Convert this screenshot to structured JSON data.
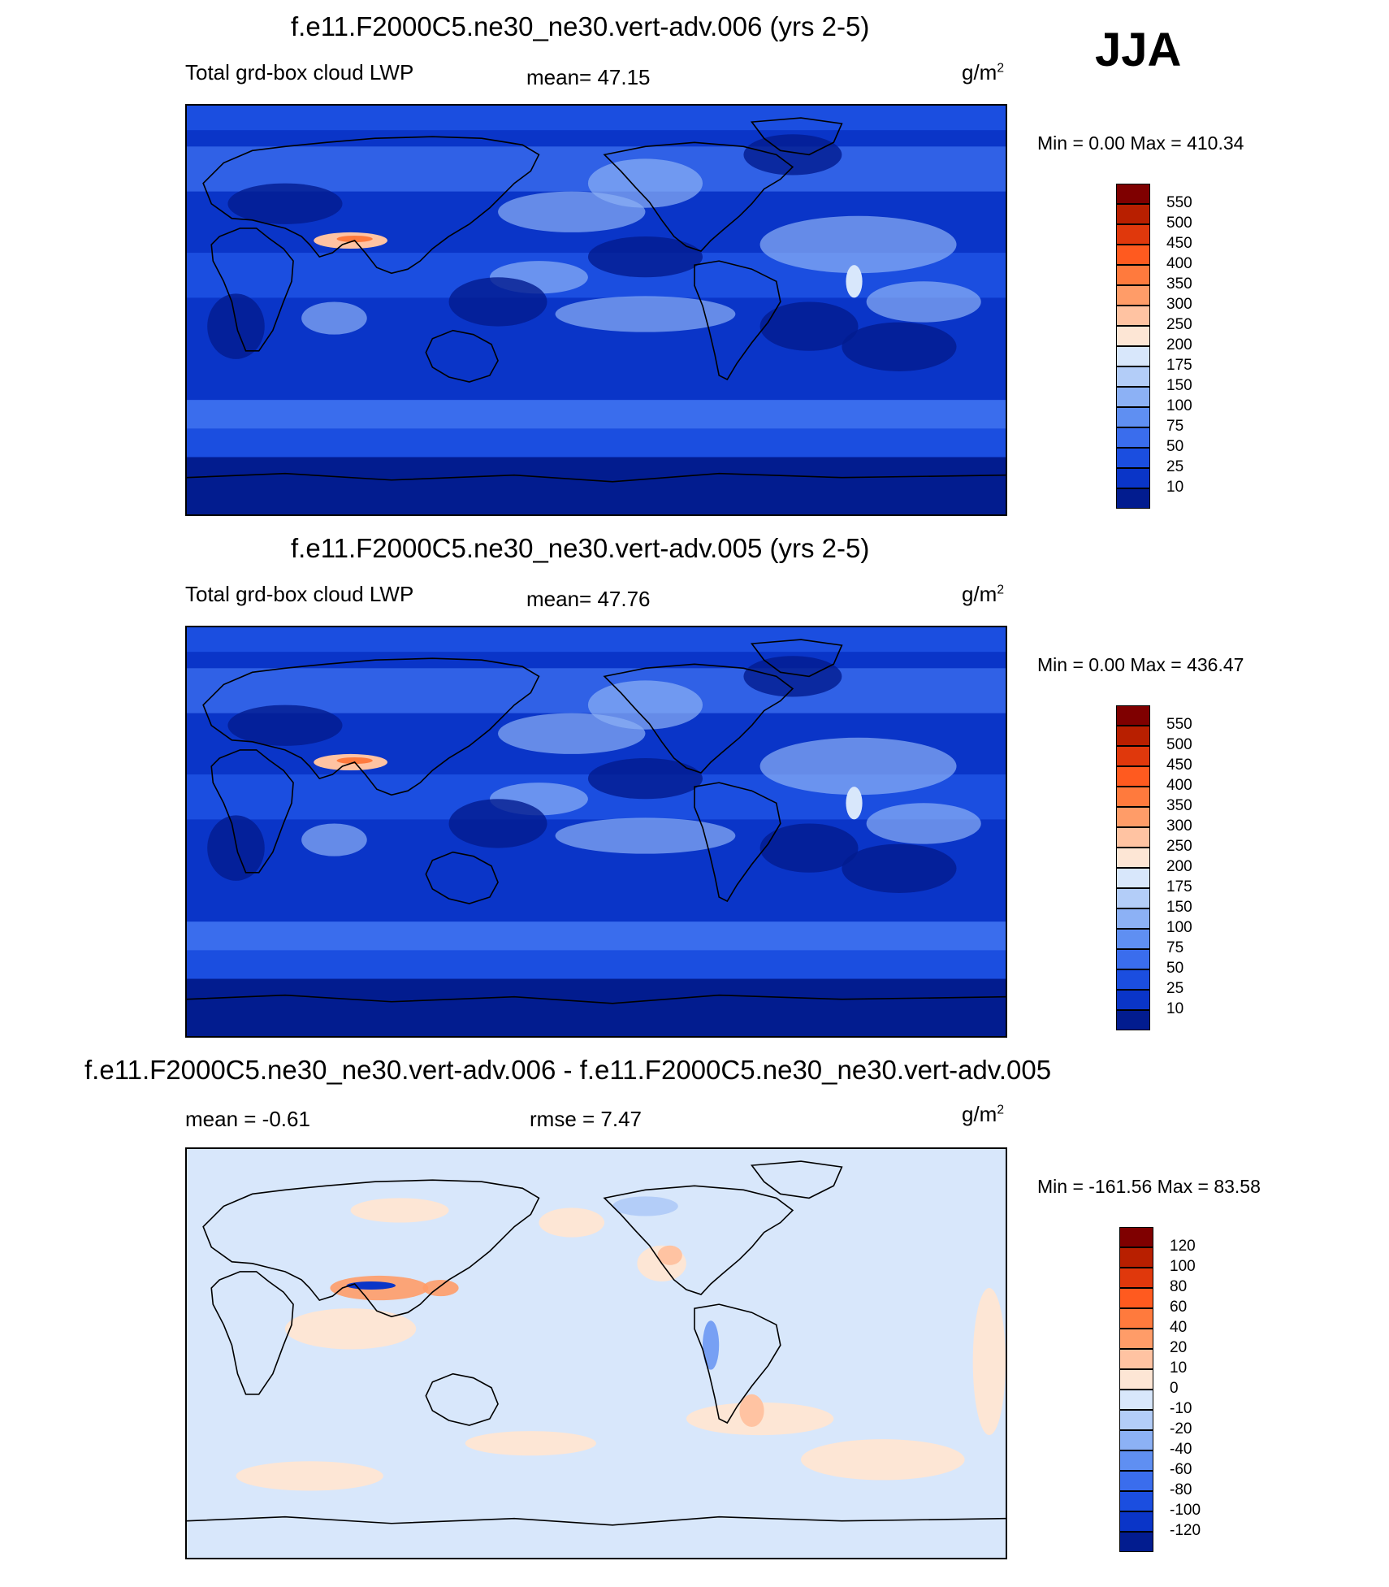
{
  "season": "JJA",
  "panels": [
    {
      "title": "f.e11.F2000C5.ne30_ne30.vert-adv.006 (yrs 2-5)",
      "left_label": "Total grd-box cloud LWP",
      "mid_label": "mean=  47.15",
      "units_base": "g/m",
      "units_exp": "2",
      "minmax": "Min =   0.00 Max = 410.34",
      "colorbar": {
        "levels": [
          "550",
          "500",
          "450",
          "400",
          "350",
          "300",
          "250",
          "200",
          "175",
          "150",
          "100",
          "75",
          "50",
          "25",
          "10"
        ],
        "colors": [
          "#7f0000",
          "#b81f00",
          "#e0380c",
          "#ff5a1f",
          "#ff7a3d",
          "#ff9c68",
          "#ffc3a2",
          "#fde6d5",
          "#d8e7fb",
          "#b3cdf8",
          "#8cb1f5",
          "#5f8ff2",
          "#3a6ded",
          "#1b4ee0",
          "#0a35c8",
          "#021c8f"
        ]
      }
    },
    {
      "title": "f.e11.F2000C5.ne30_ne30.vert-adv.005 (yrs 2-5)",
      "left_label": "Total grd-box cloud LWP",
      "mid_label": "mean=  47.76",
      "units_base": "g/m",
      "units_exp": "2",
      "minmax": "Min =   0.00 Max = 436.47",
      "colorbar": {
        "levels": [
          "550",
          "500",
          "450",
          "400",
          "350",
          "300",
          "250",
          "200",
          "175",
          "150",
          "100",
          "75",
          "50",
          "25",
          "10"
        ],
        "colors": [
          "#7f0000",
          "#b81f00",
          "#e0380c",
          "#ff5a1f",
          "#ff7a3d",
          "#ff9c68",
          "#ffc3a2",
          "#fde6d5",
          "#d8e7fb",
          "#b3cdf8",
          "#8cb1f5",
          "#5f8ff2",
          "#3a6ded",
          "#1b4ee0",
          "#0a35c8",
          "#021c8f"
        ]
      }
    },
    {
      "title": "f.e11.F2000C5.ne30_ne30.vert-adv.006 - f.e11.F2000C5.ne30_ne30.vert-adv.005",
      "left_label": "mean =  -0.61",
      "mid_label": "rmse =   7.47",
      "units_base": "g/m",
      "units_exp": "2",
      "minmax": "Min = -161.56 Max =  83.58",
      "colorbar": {
        "levels": [
          "120",
          "100",
          "80",
          "60",
          "40",
          "20",
          "10",
          "0",
          "-10",
          "-20",
          "-40",
          "-60",
          "-80",
          "-100",
          "-120"
        ],
        "colors": [
          "#7f0000",
          "#b81f00",
          "#e0380c",
          "#ff5a1f",
          "#ff7a3d",
          "#ff9c68",
          "#ffc3a2",
          "#fde6d5",
          "#d8e7fb",
          "#b3cdf8",
          "#8cb1f5",
          "#5f8ff2",
          "#3a6ded",
          "#1b4ee0",
          "#0a35c8",
          "#021c8f"
        ]
      }
    }
  ]
}
